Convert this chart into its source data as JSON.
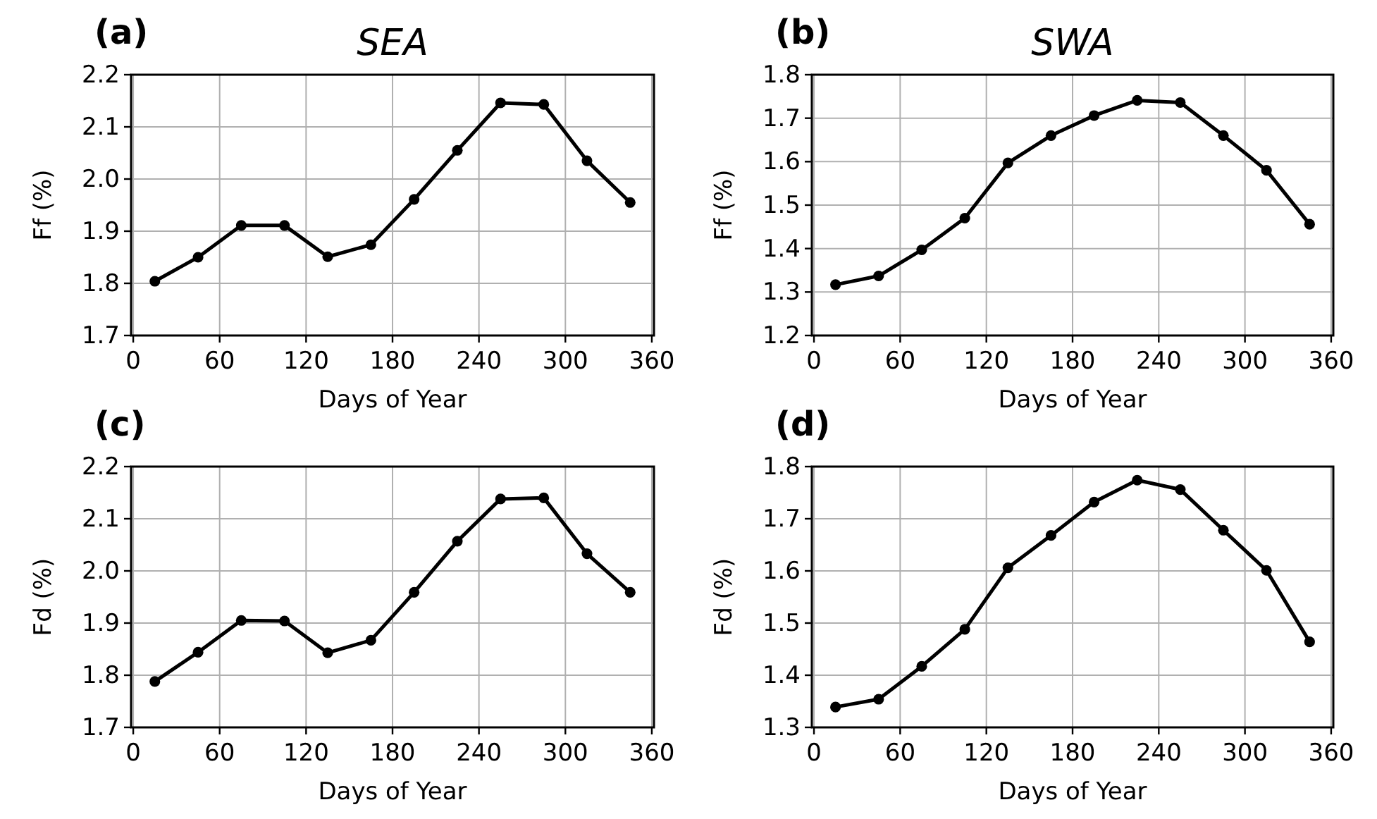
{
  "chart_data": [
    {
      "type": "line",
      "title": "(a)",
      "subtitle": "SEA",
      "xlabel": "Days of Year",
      "ylabel": "Ff (%)",
      "x": [
        15,
        45,
        75,
        105,
        135,
        165,
        195,
        225,
        255,
        285,
        315,
        345
      ],
      "series": [
        {
          "color": "#000000",
          "values": [
            1.804,
            1.85,
            1.911,
            1.911,
            1.851,
            1.874,
            1.961,
            2.055,
            2.146,
            2.143,
            2.035,
            1.955
          ]
        }
      ],
      "xlim": [
        -1.5,
        361.5
      ],
      "xticks": [
        0,
        60,
        120,
        180,
        240,
        300,
        360
      ],
      "ylim": [
        1.7,
        2.2
      ],
      "yticks": [
        {
          "value": 1.7,
          "label": "1.7"
        },
        {
          "value": 1.8,
          "label": "1.8"
        },
        {
          "value": 1.9,
          "label": "1.9"
        },
        {
          "value": 2.0,
          "label": "2.0"
        },
        {
          "value": 2.1,
          "label": "2.1"
        },
        {
          "value": 2.2,
          "label": "2.2"
        }
      ],
      "grid": true,
      "marker": "circle",
      "line_style": "solid"
    },
    {
      "type": "line",
      "title": "(b)",
      "subtitle": "SWA",
      "xlabel": "Days of Year",
      "ylabel": "Ff (%)",
      "x": [
        15,
        45,
        75,
        105,
        135,
        165,
        195,
        225,
        255,
        285,
        315,
        345
      ],
      "series": [
        {
          "color": "#000000",
          "values": [
            1.317,
            1.337,
            1.397,
            1.47,
            1.597,
            1.66,
            1.706,
            1.741,
            1.736,
            1.66,
            1.58,
            1.456
          ]
        }
      ],
      "xlim": [
        -1.5,
        361.5
      ],
      "xticks": [
        0,
        60,
        120,
        180,
        240,
        300,
        360
      ],
      "ylim": [
        1.2,
        1.8
      ],
      "yticks": [
        1.2,
        1.3,
        1.4,
        1.5,
        1.6,
        1.7,
        1.8
      ],
      "grid": true,
      "marker": "circle",
      "line_style": "solid"
    },
    {
      "type": "line",
      "title": "(c)",
      "xlabel": "Days of Year",
      "ylabel": "Fd (%)",
      "x": [
        15,
        45,
        75,
        105,
        135,
        165,
        195,
        225,
        255,
        285,
        315,
        345
      ],
      "series": [
        {
          "color": "#000000",
          "values": [
            1.788,
            1.844,
            1.905,
            1.904,
            1.843,
            1.867,
            1.959,
            2.057,
            2.138,
            2.14,
            2.033,
            1.959
          ]
        }
      ],
      "xlim": [
        -1.5,
        361.5
      ],
      "xticks": [
        0,
        60,
        120,
        180,
        240,
        300,
        360
      ],
      "ylim": [
        1.7,
        2.2
      ],
      "yticks": [
        {
          "value": 1.7,
          "label": "1.7"
        },
        {
          "value": 1.8,
          "label": "1.8"
        },
        {
          "value": 1.9,
          "label": "1.9"
        },
        {
          "value": 2.0,
          "label": "2.0"
        },
        {
          "value": 2.1,
          "label": "2.1"
        },
        {
          "value": 2.2,
          "label": "2.2"
        }
      ],
      "grid": true,
      "marker": "circle",
      "line_style": "solid"
    },
    {
      "type": "line",
      "title": "(d)",
      "xlabel": "Days of Year",
      "ylabel": "Fd (%)",
      "x": [
        15,
        45,
        75,
        105,
        135,
        165,
        195,
        225,
        255,
        285,
        315,
        345
      ],
      "series": [
        {
          "color": "#000000",
          "values": [
            1.339,
            1.354,
            1.417,
            1.488,
            1.606,
            1.668,
            1.732,
            1.774,
            1.756,
            1.678,
            1.601,
            1.464
          ]
        }
      ],
      "xlim": [
        -1.5,
        361.5
      ],
      "xticks": [
        0,
        60,
        120,
        180,
        240,
        300,
        360
      ],
      "ylim": [
        1.3,
        1.8
      ],
      "yticks": [
        1.3,
        1.4,
        1.5,
        1.6,
        1.7,
        1.8
      ],
      "grid": true,
      "marker": "circle",
      "line_style": "solid"
    }
  ]
}
